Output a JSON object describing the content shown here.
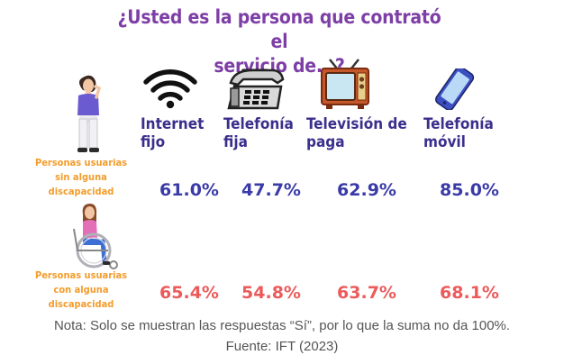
{
  "title_line1": "¿Usted es la persona que contrató el",
  "title_line2": "servicio de...?",
  "chart_data": {
    "type": "table",
    "title": "¿Usted es la persona que contrató el servicio de...?",
    "categories": [
      "Internet\nfijo",
      "Telefonía\nfija",
      "Televisión de\npaga",
      "Telefonía\nmóvil"
    ],
    "series": [
      {
        "name": "Personas usuarias\nsin alguna\ndiscapacidad",
        "values": [
          61.0,
          47.7,
          62.9,
          85.0
        ],
        "labels": [
          "61.0%",
          "47.7%",
          "62.9%",
          "85.0%"
        ],
        "color": "#3a3aa8"
      },
      {
        "name": "Personas usuarias\ncon alguna\ndiscapacidad",
        "values": [
          65.4,
          54.8,
          63.7,
          68.1
        ],
        "labels": [
          "65.4%",
          "54.8%",
          "63.7%",
          "68.1%"
        ],
        "color": "#ec5b5b"
      }
    ],
    "icons": [
      "wifi-icon",
      "landline-phone-icon",
      "television-icon",
      "mobile-phone-icon"
    ]
  },
  "note": "Nota: Solo se muestran las respuestas “Sí”, por lo que la suma no da 100%.",
  "source": "Fuente: IFT (2023)",
  "colors": {
    "title": "#7d3fa6",
    "service_label": "#3a2f8c",
    "group_label": "#f39c2b",
    "note": "#555555"
  }
}
